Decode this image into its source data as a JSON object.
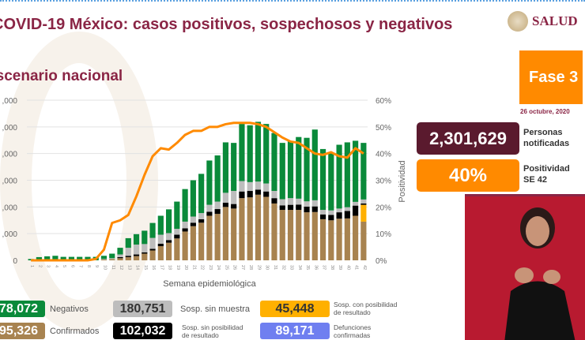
{
  "header": {
    "title": "COVID-19 México: casos positivos, sospechosos y negativos",
    "subtitle": "Escenario nacional",
    "logo_text": "SALUD"
  },
  "phase": {
    "label": "Fase 3",
    "date": "26 octubre, 2020"
  },
  "kpis": [
    {
      "value": "2,301,629",
      "label_1": "Personas",
      "label_2": "notificadas",
      "color": "#5a1a2e"
    },
    {
      "value": "40%",
      "label_1": "Positividad",
      "label_2": "SE 42",
      "color": "#ff8a00"
    }
  ],
  "legend": [
    {
      "value": "78,072",
      "label": "Negativos",
      "color": "#0a8a3a",
      "text_color": "#fff"
    },
    {
      "value": "180,751",
      "label": "Sosp. sin muestra",
      "color": "#bdbdbd",
      "text_color": "#333"
    },
    {
      "value": "45,448",
      "label_1": "Sosp. con posibilidad",
      "label_2": "de resultado",
      "color": "#ffb000",
      "text_color": "#333"
    },
    {
      "value": "95,326",
      "label": "Confirmados",
      "color": "#a88350",
      "text_color": "#fff"
    },
    {
      "value": "102,032",
      "label_1": "Sosp. sin posibilidad",
      "label_2": "de resultado",
      "color": "#000000",
      "text_color": "#fff"
    },
    {
      "value": "89,171",
      "label_1": "Defunciones",
      "label_2": "confirmadas",
      "color": "#6f7ff0",
      "text_color": "#fff"
    }
  ],
  "chart_data": {
    "type": "bar",
    "stacked": true,
    "xlabel": "Semana epidemiológica",
    "ylabel_right": "Positividad",
    "left_tick_labels": [
      "0",
      ",000",
      ",000",
      ",000",
      ",000",
      ",000",
      ",000"
    ],
    "right_tick_labels": [
      "0%",
      "10%",
      "20%",
      "30%",
      "40%",
      "50%",
      "60%"
    ],
    "ylim": [
      0,
      60000
    ],
    "ylim_right": [
      0,
      60
    ],
    "grid": true,
    "categories": [
      "1",
      "2",
      "3",
      "4",
      "5",
      "6",
      "7",
      "8",
      "9",
      "10",
      "11",
      "12",
      "13",
      "14",
      "15",
      "16",
      "17",
      "18",
      "19",
      "20",
      "21",
      "22",
      "23",
      "24",
      "25",
      "26",
      "27",
      "28",
      "29",
      "30",
      "31",
      "32",
      "33",
      "34",
      "35",
      "36",
      "37",
      "38",
      "39",
      "40",
      "41",
      "42"
    ],
    "series": [
      {
        "name": "Confirmados",
        "color": "#a88350",
        "values": [
          0,
          0,
          0,
          0,
          0,
          0,
          0,
          0,
          0,
          300,
          500,
          800,
          1200,
          1600,
          2500,
          3700,
          5300,
          6600,
          8200,
          10800,
          12800,
          14100,
          16700,
          17400,
          20000,
          19400,
          23300,
          23600,
          24600,
          23800,
          21300,
          18900,
          18900,
          18900,
          18000,
          18100,
          15400,
          15000,
          15600,
          15700,
          16700,
          14500
        ]
      },
      {
        "name": "Sosp. con posibilidad de resultado",
        "color": "#ffb000",
        "values": [
          0,
          0,
          0,
          0,
          0,
          0,
          0,
          0,
          0,
          0,
          0,
          0,
          0,
          0,
          0,
          0,
          0,
          0,
          0,
          0,
          0,
          0,
          0,
          0,
          0,
          0,
          0,
          0,
          0,
          0,
          0,
          0,
          0,
          0,
          0,
          0,
          0,
          0,
          0,
          0,
          0,
          6300
        ]
      },
      {
        "name": "Sosp. sin posibilidad de resultado",
        "color": "#000000",
        "values": [
          0,
          0,
          0,
          0,
          0,
          0,
          0,
          0,
          0,
          0,
          0,
          400,
          500,
          600,
          500,
          600,
          900,
          1000,
          1400,
          1200,
          1300,
          1300,
          1500,
          1800,
          1600,
          1700,
          2500,
          2400,
          1900,
          2000,
          2000,
          1700,
          1900,
          2000,
          2100,
          2100,
          1800,
          2000,
          2400,
          2800,
          3800,
          500
        ]
      },
      {
        "name": "Sosp. sin muestra",
        "color": "#bdbdbd",
        "values": [
          0,
          0,
          0,
          0,
          0,
          0,
          0,
          0,
          0,
          200,
          300,
          1000,
          3000,
          3700,
          3100,
          4100,
          3400,
          2600,
          2200,
          2500,
          2300,
          2300,
          2600,
          2800,
          3700,
          4900,
          3900,
          3300,
          3000,
          3000,
          2700,
          2300,
          2500,
          2200,
          2000,
          2300,
          1700,
          1700,
          1400,
          1400,
          1400,
          1500
        ]
      },
      {
        "name": "Negativos",
        "color": "#0a8a3a",
        "values": [
          500,
          1200,
          1500,
          1700,
          1300,
          1300,
          1300,
          1300,
          1300,
          1200,
          1700,
          2500,
          3600,
          3900,
          5000,
          5600,
          7100,
          8900,
          10200,
          12200,
          13600,
          14700,
          16600,
          17300,
          18900,
          18000,
          21400,
          21300,
          22400,
          22300,
          21700,
          21100,
          21400,
          23100,
          23800,
          26500,
          22800,
          21400,
          23900,
          24300,
          22900,
          21200
        ]
      }
    ],
    "line": {
      "name": "Positividad",
      "color": "#ff8a00",
      "values": [
        0,
        0,
        0,
        0,
        0,
        0,
        0,
        0,
        0.5,
        4,
        14,
        15,
        17,
        24,
        32,
        39,
        42,
        41.5,
        44,
        47,
        48.5,
        48.5,
        50,
        50,
        51,
        51.5,
        51.5,
        51.5,
        51,
        50,
        48,
        46,
        44.5,
        44,
        42,
        40,
        39.5,
        40.5,
        39,
        38.5,
        42,
        40
      ]
    }
  }
}
